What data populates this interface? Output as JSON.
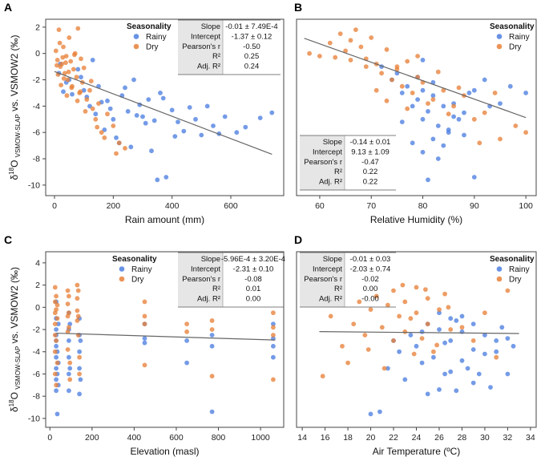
{
  "figure": {
    "y_axis_label": "δ18O VSMOW-SLAP vs. VSMOW2 (‰)",
    "colors": {
      "rainy": "#4d7fe0",
      "dry": "#e8813a",
      "frame": "#444444",
      "table_shade": "#e6e6e6",
      "fit_line": "#666666"
    }
  },
  "chart_data": [
    {
      "panel_letter": "A",
      "type": "scatter",
      "xlabel": "Rain amount (mm)",
      "ylabel": "δ18O VSMOW-SLAP vs. VSMOW2 (‰)",
      "xlim": [
        -30,
        780
      ],
      "ylim": [
        -10.8,
        2.6
      ],
      "xticks": [
        0,
        200,
        400,
        600
      ],
      "xticklabels": [
        "0",
        "200",
        "400",
        "600"
      ],
      "yticks": [
        2,
        0,
        -2,
        -4,
        -6,
        -8,
        -10
      ],
      "yticklabels": [
        "2",
        "0",
        "-2",
        "-4",
        "-6",
        "-8",
        "-10"
      ],
      "legend": {
        "title": "Seasonality",
        "entries": [
          "Rainy",
          "Dry"
        ],
        "position": "top-left"
      },
      "stats": [
        {
          "label": "Slope",
          "value": "-0.01 ± 7.49E-4"
        },
        {
          "label": "Intercept",
          "value": "-1.37 ± 0.12"
        },
        {
          "label": "Pearson's r",
          "value": "-0.50"
        },
        {
          "label": "R²",
          "value": "0.25"
        },
        {
          "label": "Adj. R²",
          "value": "0.24"
        }
      ],
      "fit": {
        "slope": -0.0085,
        "intercept": -1.37,
        "x_range": [
          0,
          740
        ]
      },
      "series": [
        {
          "name": "Rainy",
          "x": [
            15,
            40,
            60,
            100,
            120,
            150,
            180,
            200,
            230,
            250,
            270,
            300,
            320,
            350,
            380,
            420,
            460,
            500,
            540,
            580,
            620,
            650,
            700,
            740,
            30,
            80,
            110,
            140,
            170,
            210,
            240,
            260,
            290,
            340,
            360,
            400,
            440,
            520,
            560,
            20,
            50,
            90,
            130,
            160,
            190,
            220,
            280,
            310,
            330,
            370,
            410,
            480
          ],
          "y": [
            -1.5,
            -2.2,
            -3.1,
            -2.8,
            -4.0,
            -2.5,
            -3.6,
            -5.0,
            -3.2,
            -4.4,
            -2.0,
            -4.8,
            -3.5,
            -9.6,
            -9.4,
            -5.2,
            -4.1,
            -6.2,
            -5.5,
            -4.8,
            -6.0,
            -5.6,
            -4.9,
            -4.5,
            -2.9,
            -1.2,
            -3.3,
            -4.6,
            -5.8,
            -6.4,
            -2.6,
            -7.1,
            -3.9,
            -5.1,
            -3.0,
            -4.3,
            -5.9,
            -4.0,
            -6.1,
            -0.8,
            -2.0,
            -1.8,
            -0.5,
            -3.7,
            -4.2,
            -6.8,
            -4.7,
            -5.3,
            -7.4,
            -3.4,
            -6.3,
            -5.0
          ]
        },
        {
          "name": "Dry",
          "x": [
            5,
            10,
            15,
            20,
            25,
            30,
            35,
            40,
            45,
            50,
            55,
            60,
            65,
            70,
            75,
            80,
            85,
            90,
            95,
            100,
            110,
            120,
            130,
            140,
            150,
            160,
            180,
            200,
            220,
            240,
            8,
            12,
            18,
            22,
            28,
            32,
            38,
            42,
            48,
            58,
            68,
            78,
            88,
            105,
            125,
            145,
            170,
            210
          ],
          "y": [
            0.2,
            -0.5,
            1.8,
            -1.0,
            -0.8,
            0.5,
            -1.5,
            -0.2,
            -2.0,
            1.2,
            -0.6,
            -2.5,
            -1.2,
            0.0,
            -1.8,
            1.9,
            -3.0,
            -0.4,
            -2.2,
            -1.1,
            -3.5,
            -2.8,
            -4.2,
            -5.0,
            -3.8,
            -6.0,
            -4.6,
            -5.5,
            -6.8,
            -7.2,
            -0.9,
            -1.6,
            0.8,
            -2.4,
            -0.3,
            -1.9,
            -0.7,
            -3.2,
            -1.4,
            -2.6,
            -0.1,
            -3.6,
            -2.9,
            -4.4,
            -2.1,
            -5.6,
            -6.4,
            -7.6
          ]
        }
      ]
    },
    {
      "panel_letter": "B",
      "type": "scatter",
      "xlabel": "Relative Humidity (%)",
      "ylabel": "",
      "xlim": [
        55.5,
        102
      ],
      "ylim": [
        -10.8,
        2.6
      ],
      "xticks": [
        60,
        70,
        80,
        90,
        100
      ],
      "xticklabels": [
        "60",
        "70",
        "80",
        "90",
        "100"
      ],
      "yticks": [],
      "yticklabels": [],
      "legend": {
        "title": "Seasonality",
        "entries": [
          "Rainy",
          "Dry"
        ],
        "position": "top-right"
      },
      "stats": [
        {
          "label": "Slope",
          "value": "-0.14 ± 0.01"
        },
        {
          "label": "Intercept",
          "value": "9.13 ± 1.09"
        },
        {
          "label": "Pearson's r",
          "value": "-0.47"
        },
        {
          "label": "R²",
          "value": "0.22"
        },
        {
          "label": "Adj. R²",
          "value": "0.22"
        }
      ],
      "fit": {
        "slope": -0.14,
        "intercept": 9.13,
        "x_range": [
          57,
          100
        ]
      },
      "series": [
        {
          "name": "Rainy",
          "x": [
            72,
            74,
            75,
            76,
            77,
            78,
            79,
            80,
            80,
            81,
            82,
            82,
            83,
            84,
            85,
            86,
            87,
            88,
            89,
            90,
            92,
            95,
            97,
            100,
            78,
            80,
            81,
            83,
            85,
            79,
            82,
            84,
            86,
            88,
            76,
            80,
            90,
            93
          ],
          "y": [
            -1.0,
            -2.0,
            -1.5,
            -3.0,
            -2.5,
            -4.0,
            -3.5,
            -2.8,
            -5.0,
            -4.4,
            -3.2,
            -6.5,
            -5.5,
            -4.0,
            -6.0,
            -3.8,
            -5.0,
            -4.5,
            -3.0,
            -2.8,
            -2.0,
            -3.8,
            -2.5,
            -3.0,
            -6.8,
            -7.5,
            -9.6,
            -8.0,
            -5.8,
            -1.8,
            -2.2,
            -7.0,
            -4.8,
            -6.2,
            -5.2,
            -0.5,
            -9.4,
            -4.0
          ]
        },
        {
          "name": "Dry",
          "x": [
            58,
            60,
            62,
            64,
            65,
            66,
            67,
            68,
            69,
            70,
            71,
            72,
            73,
            74,
            75,
            76,
            77,
            78,
            79,
            80,
            82,
            84,
            86,
            88,
            90,
            92,
            95,
            98,
            100,
            63,
            66,
            69,
            71,
            73,
            75,
            77,
            79,
            81,
            83,
            85,
            87,
            91,
            94
          ],
          "y": [
            0.0,
            -0.2,
            0.8,
            1.5,
            0.2,
            -0.5,
            1.8,
            0.5,
            -1.0,
            1.2,
            -0.8,
            -1.5,
            0.3,
            -2.0,
            -1.2,
            -2.5,
            -0.6,
            -3.0,
            -1.8,
            -2.2,
            -3.5,
            -2.8,
            -4.0,
            -3.2,
            -5.0,
            -4.5,
            -6.5,
            -5.5,
            -6.0,
            -0.3,
            1.0,
            -0.4,
            -2.8,
            -3.6,
            -1.0,
            -4.2,
            -0.2,
            -3.8,
            -1.4,
            -4.6,
            -2.6,
            -6.8,
            -3.0
          ]
        }
      ]
    },
    {
      "panel_letter": "C",
      "type": "scatter",
      "xlabel": "Elevation (masl)",
      "ylabel": "δ18O VSMOW-SLAP vs. VSMOW2 (‰)",
      "xlim": [
        -20,
        1110
      ],
      "ylim": [
        -10.8,
        5.0
      ],
      "xticks": [
        0,
        200,
        400,
        600,
        800,
        1000
      ],
      "xticklabels": [
        "0",
        "200",
        "400",
        "600",
        "800",
        "1000"
      ],
      "yticks": [
        4,
        2,
        0,
        -2,
        -4,
        -6,
        -8,
        -10
      ],
      "yticklabels": [
        "4",
        "2",
        "0",
        "-2",
        "-4",
        "-6",
        "-8",
        "-10"
      ],
      "legend": {
        "title": "Seasonality",
        "entries": [
          "Rainy",
          "Dry"
        ],
        "position": "top-left"
      },
      "stats": [
        {
          "label": "Slope",
          "value": "-5.96E-4 ± 3.20E-4"
        },
        {
          "label": "Intercept",
          "value": "-2.31 ± 0.10"
        },
        {
          "label": "Pearson's r",
          "value": "-0.08"
        },
        {
          "label": "R²",
          "value": "0.01"
        },
        {
          "label": "Adj. R²",
          "value": "0.00"
        }
      ],
      "fit": {
        "slope": -0.000596,
        "intercept": -2.31,
        "x_range": [
          30,
          1070
        ]
      },
      "series": [
        {
          "name": "Rainy",
          "x": [
            30,
            30,
            30,
            30,
            30,
            30,
            30,
            30,
            30,
            30,
            35,
            35,
            35,
            40,
            40,
            40,
            90,
            90,
            90,
            90,
            90,
            90,
            95,
            95,
            140,
            140,
            140,
            140,
            140,
            145,
            145,
            450,
            450,
            450,
            650,
            650,
            770,
            770,
            770,
            1060,
            1060,
            1060,
            1060
          ],
          "y": [
            0.5,
            -1.0,
            -2.5,
            -3.5,
            -4.5,
            -5.5,
            -6.5,
            -7.5,
            -3.0,
            -2.0,
            -9.6,
            -4.0,
            -6.0,
            -1.5,
            -5.0,
            -7.0,
            -0.5,
            -2.0,
            -3.0,
            -4.5,
            -6.0,
            -7.5,
            -1.5,
            -5.5,
            -1.0,
            -2.5,
            -4.0,
            -5.5,
            -7.8,
            -3.0,
            -6.5,
            -1.5,
            -2.8,
            -3.2,
            -3.0,
            -5.0,
            -2.5,
            -3.5,
            -9.4,
            -2.8,
            -3.5,
            -4.5,
            -1.5
          ]
        },
        {
          "name": "Dry",
          "x": [
            25,
            25,
            25,
            25,
            25,
            25,
            25,
            30,
            30,
            30,
            30,
            35,
            35,
            35,
            85,
            85,
            85,
            85,
            85,
            90,
            90,
            90,
            95,
            95,
            130,
            130,
            130,
            130,
            135,
            135,
            135,
            140,
            140,
            450,
            450,
            450,
            450,
            650,
            650,
            770,
            770,
            770,
            1060,
            1060,
            1060,
            1060
          ],
          "y": [
            1.8,
            0.5,
            -0.5,
            -1.5,
            -2.5,
            -4.0,
            -6.0,
            1.0,
            -0.2,
            -3.0,
            -7.0,
            0.2,
            -1.0,
            -5.0,
            1.5,
            0.3,
            -0.8,
            -2.2,
            -3.8,
            1.0,
            -0.5,
            -1.8,
            -5.0,
            -6.5,
            2.0,
            0.8,
            -0.3,
            -1.2,
            1.5,
            -0.8,
            -2.5,
            -4.5,
            -6.0,
            0.5,
            -0.8,
            -1.5,
            -5.2,
            -1.5,
            -2.2,
            -1.2,
            -2.0,
            -6.2,
            -0.5,
            -1.8,
            -2.5,
            -6.5
          ]
        }
      ]
    },
    {
      "panel_letter": "D",
      "type": "scatter",
      "xlabel": "Air Temperature (ºC)",
      "ylabel": "",
      "xlim": [
        13.5,
        34.5
      ],
      "ylim": [
        -10.8,
        5.0
      ],
      "xticks": [
        14,
        16,
        18,
        20,
        22,
        24,
        26,
        28,
        30,
        32,
        34
      ],
      "xticklabels": [
        "14",
        "16",
        "18",
        "20",
        "22",
        "24",
        "26",
        "28",
        "30",
        "32",
        "34"
      ],
      "yticks": [],
      "yticklabels": [],
      "legend": {
        "title": "Seasonality",
        "entries": [
          "Rainy",
          "Dry"
        ],
        "position": "top-right"
      },
      "stats": [
        {
          "label": "Slope",
          "value": "-0.01 ± 0.03"
        },
        {
          "label": "Intercept",
          "value": "-2.03 ± 0.74"
        },
        {
          "label": "Pearson's r",
          "value": "-0.02"
        },
        {
          "label": "R²",
          "value": "0.00"
        },
        {
          "label": "Adj. R²",
          "value": "-0.00"
        }
      ],
      "fit": {
        "slope": -0.01,
        "intercept": -2.03,
        "x_range": [
          15.5,
          33
        ]
      },
      "series": [
        {
          "name": "Rainy",
          "x": [
            20,
            20.8,
            21.5,
            22,
            22.5,
            23,
            23.5,
            24,
            24.5,
            25,
            25.5,
            26,
            26,
            26.5,
            27,
            27,
            27.5,
            28,
            28,
            28.5,
            29,
            29,
            29.5,
            30,
            30.5,
            31,
            31.5,
            32,
            32.5,
            25,
            26,
            27,
            28,
            29,
            30,
            26.5,
            27.5,
            24.5,
            31,
            32
          ],
          "y": [
            -9.6,
            -9.4,
            -5.5,
            -3.0,
            -4.0,
            -6.5,
            -2.5,
            -3.5,
            -5.0,
            -1.5,
            -4.5,
            -0.5,
            -2.0,
            -6.0,
            -1.0,
            -3.0,
            -7.5,
            -2.2,
            -4.8,
            -5.5,
            -1.5,
            -3.8,
            -6.0,
            -2.5,
            -7.2,
            -3.0,
            -1.8,
            -2.8,
            -3.5,
            -7.8,
            -7.4,
            -5.8,
            -0.8,
            -6.8,
            -4.2,
            -3.2,
            -1.2,
            -2.2,
            -4.0,
            -6.0
          ]
        },
        {
          "name": "Dry",
          "x": [
            15.8,
            16.5,
            17.5,
            18.5,
            19,
            19.5,
            20,
            20.5,
            21,
            21.5,
            22,
            22,
            22.5,
            23,
            23,
            23.5,
            24,
            24,
            24.5,
            25,
            25,
            25.5,
            26,
            26.5,
            27,
            28,
            29,
            30,
            31,
            32,
            18,
            19.8,
            21.2,
            22.8,
            23.8,
            24.8,
            25.8,
            26.8
          ],
          "y": [
            -6.2,
            -0.8,
            -3.5,
            -1.5,
            0.5,
            -2.5,
            -0.2,
            1.0,
            -1.8,
            0.2,
            -3.0,
            1.5,
            -0.8,
            0.5,
            -2.2,
            -1.0,
            1.8,
            -0.5,
            -2.8,
            0.8,
            -1.5,
            -4.0,
            -0.2,
            1.2,
            -2.0,
            -1.8,
            -3.0,
            -0.5,
            -4.5,
            1.5,
            -5.0,
            -3.8,
            -5.5,
            2.0,
            -4.2,
            1.6,
            -3.4,
            0.0
          ]
        }
      ]
    }
  ]
}
